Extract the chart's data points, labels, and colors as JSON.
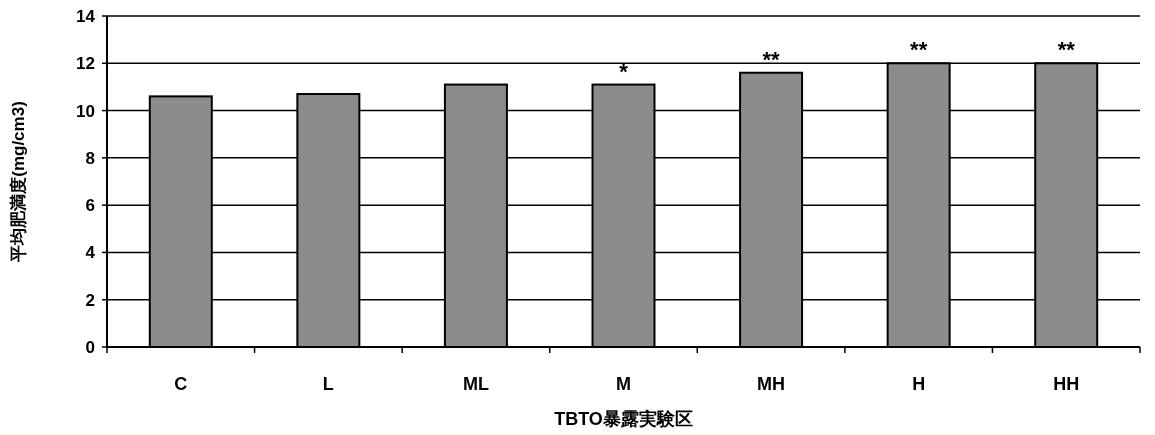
{
  "chart_data": {
    "type": "bar",
    "xlabel": "TBTO暴露実験区",
    "ylabel": "平均肥満度(mg/cm3)",
    "categories": [
      "C",
      "L",
      "ML",
      "M",
      "MH",
      "H",
      "HH"
    ],
    "values": [
      10.6,
      10.7,
      11.1,
      11.1,
      11.6,
      12.0,
      12.0
    ],
    "color": "#8c8c8c",
    "ylim": [
      0,
      14
    ],
    "yticks": [
      0,
      2,
      4,
      6,
      8,
      10,
      12,
      14
    ],
    "grid": "y",
    "annotations": [
      {
        "text": "*",
        "x": "M",
        "y": 11.1
      },
      {
        "text": "**",
        "x": "MH",
        "y": 11.6
      },
      {
        "text": "**",
        "x": "H",
        "y": 12.0
      },
      {
        "text": "**",
        "x": "HH",
        "y": 12.0
      }
    ]
  }
}
